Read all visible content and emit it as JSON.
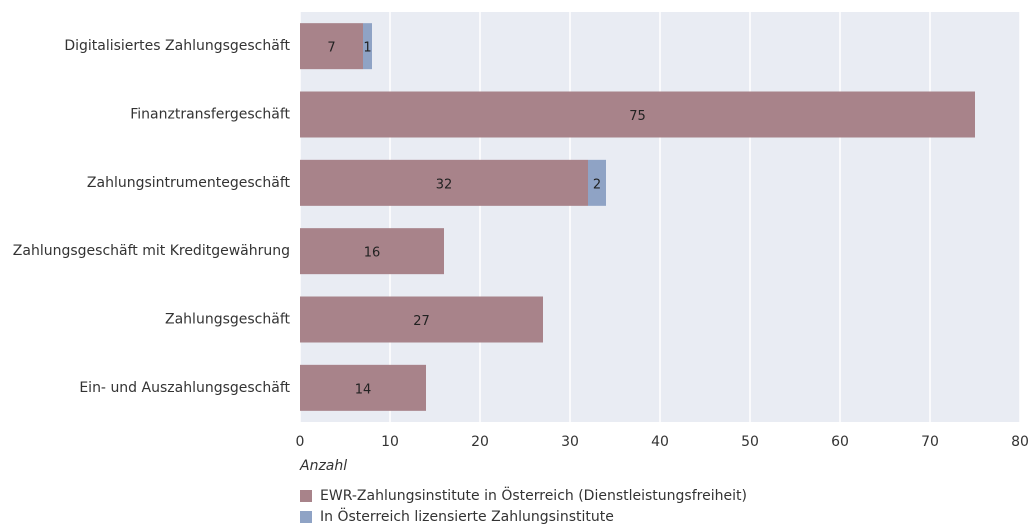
{
  "chart_data": {
    "type": "bar",
    "orientation": "horizontal",
    "stacked": true,
    "categories": [
      "Digitalisiertes Zahlungsgeschäft",
      "Finanztransfergeschäft",
      "Zahlungsintrumentegeschäft",
      "Zahlungsgeschäft mit Kreditgewährung",
      "Zahlungsgeschäft",
      "Ein- und Auszahlungsgeschäft"
    ],
    "series": [
      {
        "name": "EWR-Zahlungsinstitute in Österreich (Dienstleistungsfreiheit)",
        "color": "#a8838a",
        "values": [
          7,
          75,
          32,
          16,
          27,
          14
        ]
      },
      {
        "name": "In Österreich lizensierte Zahlungsinstitute",
        "color": "#8fa3c5",
        "values": [
          1,
          null,
          2,
          null,
          null,
          null
        ]
      }
    ],
    "xlabel": "Anzahl",
    "xlim": [
      0,
      80
    ],
    "xticks": [
      0,
      10,
      20,
      30,
      40,
      50,
      60,
      70,
      80
    ],
    "grid": true,
    "legend": "bottom-left"
  }
}
